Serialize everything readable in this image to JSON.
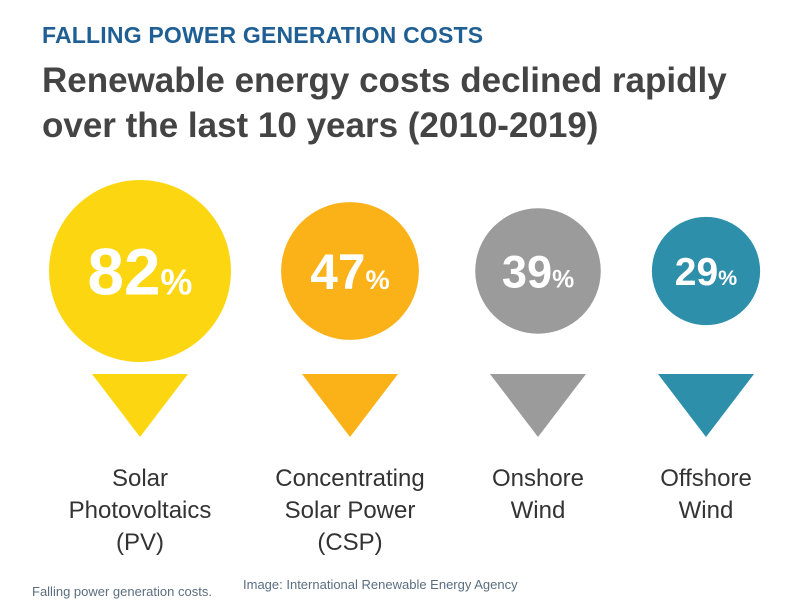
{
  "header": {
    "kicker": "FALLING POWER GENERATION COSTS",
    "headline": "Renewable energy costs declined rapidly over the last 10 years (2010-2019)"
  },
  "chart_data": {
    "type": "bubble",
    "unit": "%",
    "categories": [
      [
        "Solar",
        "Photovoltaics",
        "(PV)"
      ],
      [
        "Concentrating",
        "Solar Power",
        "(CSP)"
      ],
      [
        "Onshore",
        "Wind"
      ],
      [
        "Offshore",
        "Wind"
      ]
    ],
    "values": [
      82,
      47,
      39,
      29
    ],
    "colors": [
      "#fcd711",
      "#fbb218",
      "#9b9b9b",
      "#2e8fab"
    ]
  },
  "footer": {
    "caption": "Falling power generation costs.",
    "credit": "Image: International Renewable Energy Agency"
  }
}
